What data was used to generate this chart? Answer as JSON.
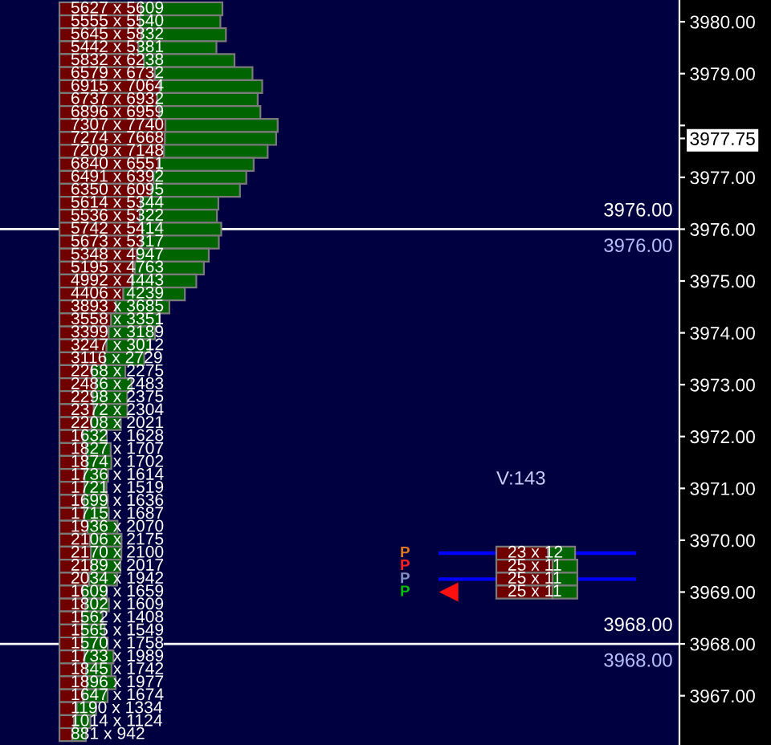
{
  "chart_data": [
    {
      "type": "bar",
      "orientation": "horizontal",
      "stacked": true,
      "x": [
        3980.25,
        3980.0,
        3979.75,
        3979.5,
        3979.25,
        3979.0,
        3978.75,
        3978.5,
        3978.25,
        3978.0,
        3977.75,
        3977.5,
        3977.25,
        3977.0,
        3976.75,
        3976.5,
        3976.25,
        3976.0,
        3975.75,
        3975.5,
        3975.25,
        3975.0,
        3974.75,
        3974.5,
        3974.25,
        3974.0,
        3973.75,
        3973.5,
        3973.25,
        3973.0,
        3972.75,
        3972.5,
        3972.25,
        3972.0,
        3971.75,
        3971.5,
        3971.25,
        3971.0,
        3970.75,
        3970.5,
        3970.25,
        3970.0,
        3969.75,
        3969.5,
        3969.25,
        3969.0,
        3968.75,
        3968.5,
        3968.25,
        3968.0,
        3967.75,
        3967.5,
        3967.25,
        3967.0,
        3966.75,
        3966.5,
        3966.25
      ],
      "series": [
        {
          "color": "#700000",
          "values": [
            5627,
            5555,
            5645,
            5442,
            5832,
            6579,
            6915,
            6737,
            6896,
            7307,
            7274,
            7209,
            6840,
            6491,
            6350,
            5614,
            5536,
            5742,
            5673,
            5348,
            5195,
            4992,
            4406,
            3893,
            3558,
            3399,
            3247,
            3116,
            2268,
            2486,
            2298,
            2372,
            2208,
            1632,
            1827,
            1874,
            1736,
            1721,
            1699,
            1715,
            1936,
            2106,
            2170,
            2189,
            2034,
            1609,
            1802,
            1562,
            1565,
            1570,
            1733,
            1845,
            1896,
            1647,
            1190,
            1014,
            881
          ],
          "value_labels": [
            "5627 x 5609",
            "5555 x 5540",
            "5645 x 5832",
            "5442 x 5381",
            "5832 x 6238",
            "6579 x 6732",
            "6915 x 7064",
            "6737 x 6932",
            "6896 x 6959",
            "7307 x 7740",
            "7274 x 7668",
            "7209 x 7148",
            "6840 x 6551",
            "6491 x 6392",
            "6350 x 6095",
            "5614 x 5344",
            "5536 x 5322",
            "5742 x 5414",
            "5673 x 5317",
            "5348 x 4947",
            "5195 x 4763",
            "4992 x 4443",
            "4406 x 4239",
            "3893 x 3685",
            "3558 x 3351",
            "3399 x 3189",
            "3247 x 3012",
            "3116 x 2729",
            "2268 x 2275",
            "2486 x 2483",
            "2298 x 2375",
            "2372 x 2304",
            "2208 x 2021",
            "1632 x 1628",
            "1827 x 1707",
            "1874 x 1702",
            "1736 x 1614",
            "1721 x 1519",
            "1699 x 1636",
            "1715 x 1687",
            "1936 x 2070",
            "2106 x 2175",
            "2170 x 2100",
            "2189 x 2017",
            "2034 x 1942",
            "1609 x 1659",
            "1802 x 1609",
            "1562 x 1408",
            "1565 x 1549",
            "1570 x 1758",
            "1733 x 1989",
            "1845 x 1742",
            "1896 x 1977",
            "1647 x 1674",
            "1190 x 1334",
            "1014 x 1124",
            "881 x 942"
          ]
        },
        {
          "color": "#006400",
          "values": [
            5609,
            5540,
            5832,
            5381,
            6238,
            6732,
            7064,
            6932,
            6959,
            7740,
            7668,
            7148,
            6551,
            6392,
            6095,
            5344,
            5322,
            5414,
            5317,
            4947,
            4763,
            4443,
            4239,
            3685,
            3351,
            3189,
            3012,
            2729,
            2275,
            2483,
            2375,
            2304,
            2021,
            1628,
            1707,
            1702,
            1614,
            1519,
            1636,
            1687,
            2070,
            2175,
            2100,
            2017,
            1942,
            1659,
            1609,
            1408,
            1549,
            1758,
            1989,
            1742,
            1977,
            1674,
            1334,
            1124,
            942
          ]
        }
      ],
      "xlim": [
        -4100,
        42750
      ],
      "ylim": [
        3966.05,
        3980.42
      ],
      "yticks": [
        {
          "value": 3967,
          "label": "3967.00"
        },
        {
          "value": 3968,
          "label": "3968.00"
        },
        {
          "value": 3969,
          "label": "3969.00"
        },
        {
          "value": 3970,
          "label": "3970.00"
        },
        {
          "value": 3971,
          "label": "3971.00"
        },
        {
          "value": 3972,
          "label": "3972.00"
        },
        {
          "value": 3973,
          "label": "3973.00"
        },
        {
          "value": 3974,
          "label": "3974.00"
        },
        {
          "value": 3975,
          "label": "3975.00"
        },
        {
          "value": 3976,
          "label": "3976.00"
        },
        {
          "value": 3977,
          "label": "3977.00"
        },
        {
          "value": 3977.75,
          "label": "3977.75"
        },
        {
          "value": 3978,
          "label": null
        },
        {
          "value": 3979,
          "label": "3979.00"
        },
        {
          "value": 3980,
          "label": "3980.00"
        }
      ],
      "tick_labels": "y",
      "ref_lines": [
        {
          "axis": "y",
          "value": 3976,
          "label": "3976.00",
          "color": "#ffffff"
        },
        {
          "axis": "y",
          "value": 3968,
          "label": "3968.00",
          "color": "#ffffff"
        }
      ]
    },
    {
      "type": "bar",
      "orientation": "horizontal",
      "stacked": true,
      "title": "V:143",
      "x": [
        3969.75,
        3969.5,
        3969.25,
        3969.0
      ],
      "series": [
        {
          "color": "#700000",
          "values": [
            23,
            25,
            25,
            25
          ],
          "value_labels": [
            "23 x 12",
            "25 x 11",
            "25 x 11",
            "25 x 11"
          ]
        },
        {
          "color": "#006400",
          "values": [
            12,
            11,
            11,
            11
          ]
        }
      ],
      "xlim": [
        -25.7,
        62.1
      ],
      "ylim": [
        3966.05,
        3980.42
      ],
      "tick_labels": false,
      "ref_lines": [
        {
          "axis": "y",
          "value": 3969.75,
          "color": "#0000ff"
        },
        {
          "axis": "y",
          "value": 3969.25,
          "color": "#0000ff"
        }
      ],
      "annotations": [
        "P",
        "P",
        "P",
        "P"
      ]
    }
  ]
}
